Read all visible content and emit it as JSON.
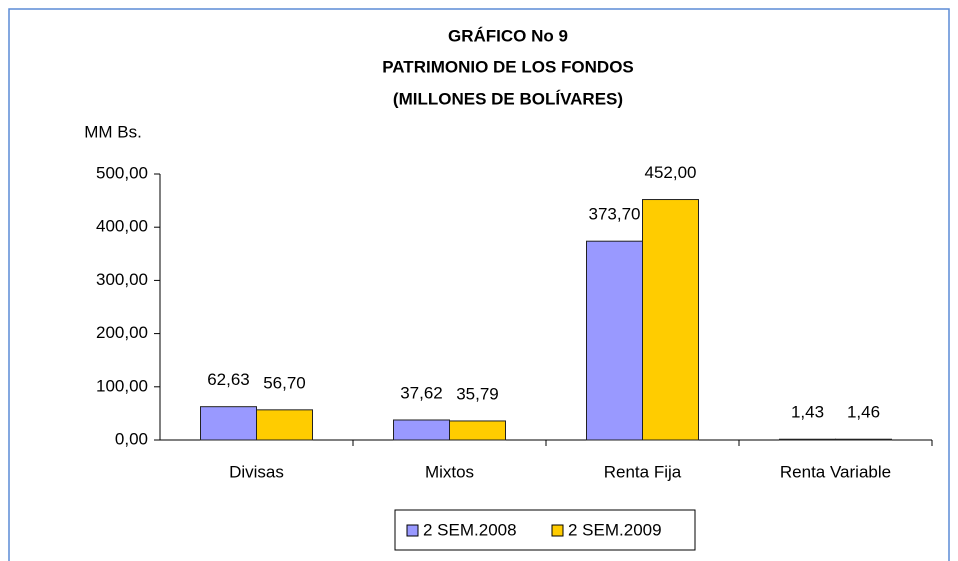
{
  "chart_data": {
    "type": "bar",
    "title": [
      "GRÁFICO No 9",
      "PATRIMONIO DE LOS FONDOS",
      "(MILLONES DE BOLÍVARES)"
    ],
    "y_axis_label": "MM Bs.",
    "categories": [
      "Divisas",
      "Mixtos",
      "Renta Fija",
      "Renta Variable"
    ],
    "series": [
      {
        "name": "2 SEM.2008",
        "color": "#9999ff",
        "values": [
          62.63,
          37.62,
          373.7,
          1.43
        ],
        "value_labels": [
          "62,63",
          "37,62",
          "373,70",
          "1,43"
        ]
      },
      {
        "name": "2 SEM.2009",
        "color": "#ffcc00",
        "values": [
          56.7,
          35.79,
          452.0,
          1.46
        ],
        "value_labels": [
          "56,70",
          "35,79",
          "452,00",
          "1,46"
        ]
      }
    ],
    "ylim": [
      0,
      500
    ],
    "yticks": [
      {
        "value": 0,
        "label": "0,00"
      },
      {
        "value": 100,
        "label": "100,00"
      },
      {
        "value": 200,
        "label": "200,00"
      },
      {
        "value": 300,
        "label": "300,00"
      },
      {
        "value": 400,
        "label": "400,00"
      },
      {
        "value": 500,
        "label": "500,00"
      }
    ],
    "legend": "bottom",
    "grid": false
  }
}
